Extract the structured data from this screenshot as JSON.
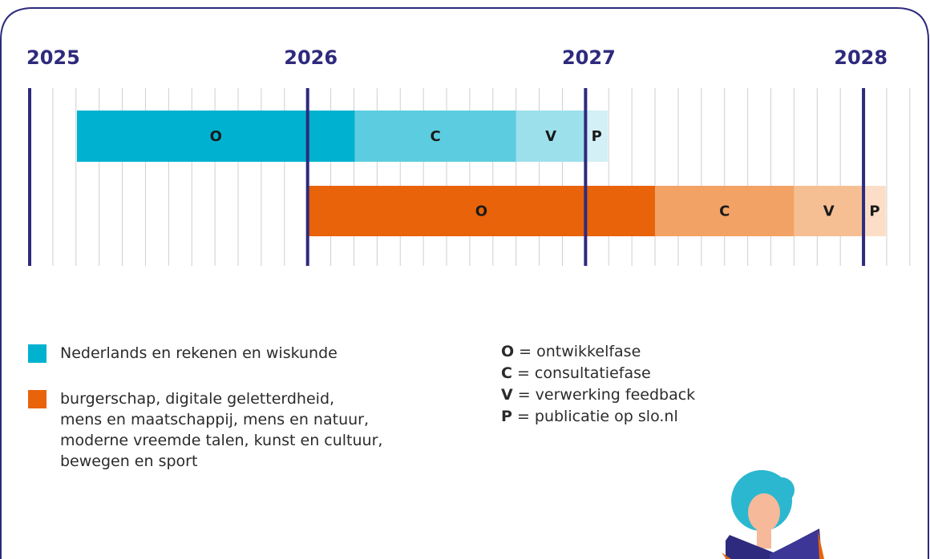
{
  "chart_data": {
    "type": "gantt",
    "xlim": [
      2025,
      2028.17
    ],
    "xticks": [
      2025,
      2026,
      2027,
      2028
    ],
    "minor_grid_per_year": 12,
    "axis_color": "#2e2a7d",
    "series": [
      {
        "name": "Nederlands en rekenen en wiskunde",
        "color": "#00b2cf",
        "segments": [
          {
            "label": "O",
            "start": 2025.17,
            "end": 2026.17,
            "color": "#00b2cf"
          },
          {
            "label": "C",
            "start": 2026.17,
            "end": 2026.75,
            "color": "#5ccde0"
          },
          {
            "label": "V",
            "start": 2026.75,
            "end": 2027.0,
            "color": "#9ce0ec"
          },
          {
            "label": "P",
            "start": 2027.0,
            "end": 2027.08,
            "color": "#d2f0f5"
          }
        ]
      },
      {
        "name": "burgerschap, digitale geletterdheid,\nmens en maatschappij, mens en natuur,\nmoderne vreemde talen, kunst en cultuur,\nbewegen en sport",
        "color": "#e8630a",
        "segments": [
          {
            "label": "O",
            "start": 2026.0,
            "end": 2027.25,
            "color": "#e8630a"
          },
          {
            "label": "C",
            "start": 2027.25,
            "end": 2027.75,
            "color": "#f2a264"
          },
          {
            "label": "V",
            "start": 2027.75,
            "end": 2028.0,
            "color": "#f6bf93"
          },
          {
            "label": "P",
            "start": 2028.0,
            "end": 2028.08,
            "color": "#fcdec8"
          }
        ]
      }
    ],
    "phases": [
      {
        "key": "O",
        "text": "= ontwikkelfase"
      },
      {
        "key": "C",
        "text": "= consultatiefase"
      },
      {
        "key": "V",
        "text": "= verwerking feedback"
      },
      {
        "key": "P",
        "text": "= publicatie op slo.nl"
      }
    ]
  }
}
